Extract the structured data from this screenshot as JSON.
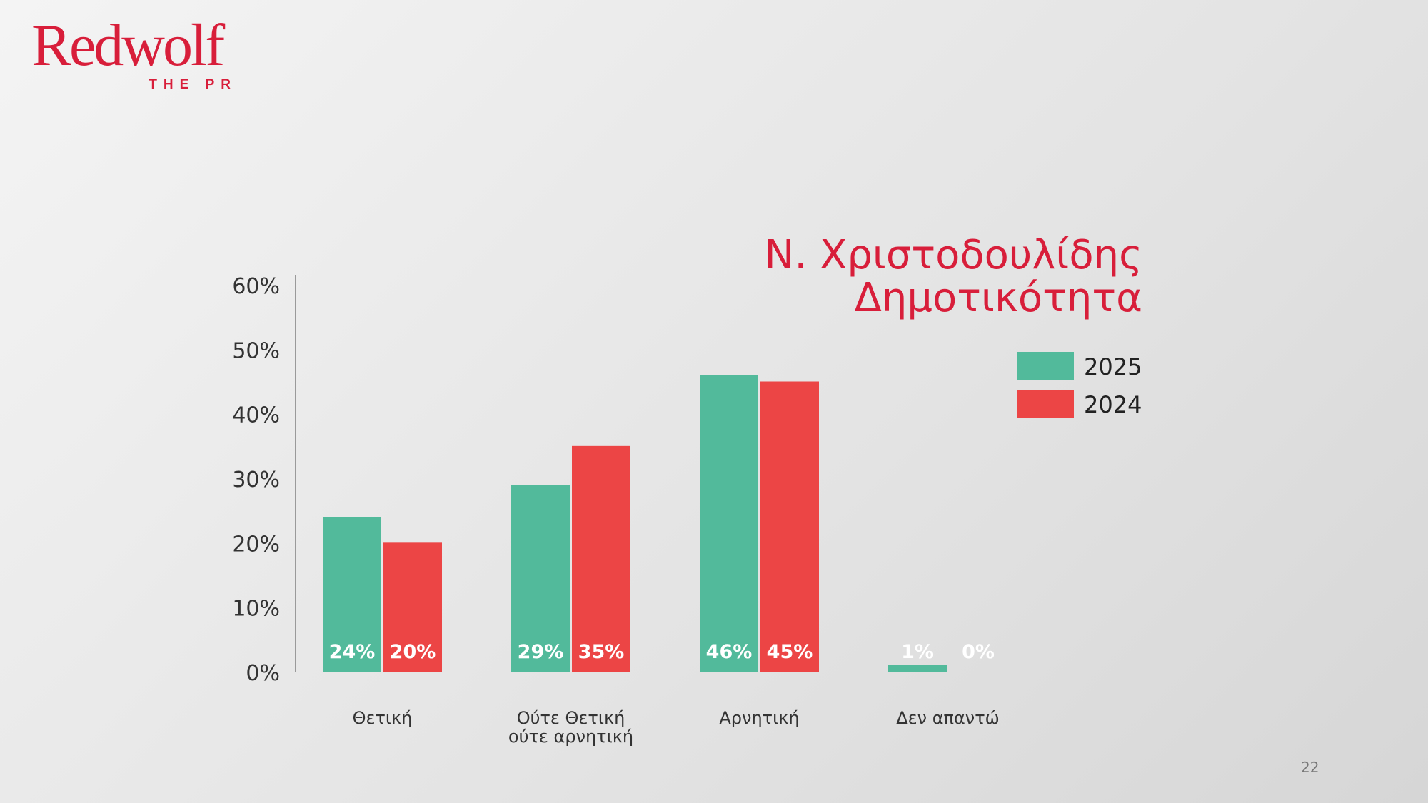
{
  "logo": {
    "word": "Redwolf",
    "subtitle": "THE PR"
  },
  "chart_data": {
    "type": "bar",
    "title_lines": [
      "Ν. Χριστοδουλίδης",
      "Δημοτικότητα"
    ],
    "categories": [
      [
        "Θετική"
      ],
      [
        "Ούτε Θετική",
        "ούτε αρνητική"
      ],
      [
        "Αρνητική"
      ],
      [
        "Δεν απαντώ"
      ]
    ],
    "series": [
      {
        "name": "2025",
        "color": "#52ba9b",
        "values": [
          24,
          29,
          46,
          1
        ],
        "labels": [
          "24%",
          "29%",
          "46%",
          "1%"
        ]
      },
      {
        "name": "2024",
        "color": "#ec4545",
        "values": [
          20,
          35,
          45,
          0
        ],
        "labels": [
          "20%",
          "35%",
          "45%",
          "0%"
        ]
      }
    ],
    "yticks": [
      "0%",
      "10%",
      "20%",
      "30%",
      "40%",
      "50%",
      "60%"
    ],
    "ylim": [
      0,
      60
    ],
    "legend_position": "right",
    "grid": false
  },
  "page_number": "22"
}
